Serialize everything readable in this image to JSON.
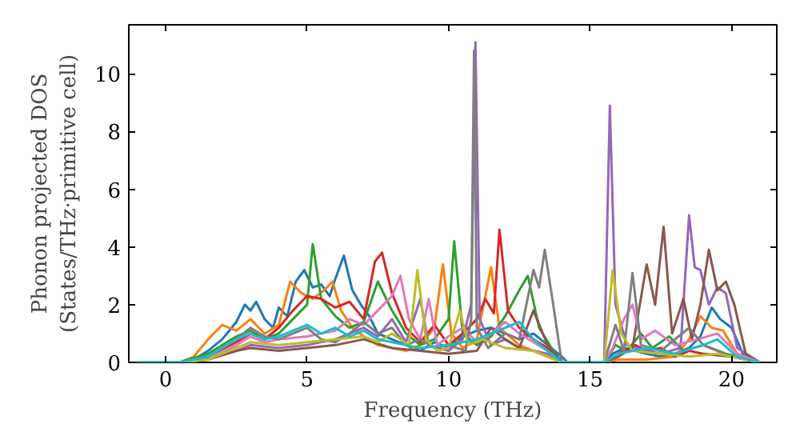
{
  "chart_data": {
    "type": "line",
    "xlabel": "Frequency (THz)",
    "ylabel": "Phonon projected DOS\n(States/THz·primitive cell)",
    "xlim": [
      -1.3,
      21.6
    ],
    "ylim": [
      0,
      11.7
    ],
    "xticks": [
      0,
      5,
      10,
      15,
      20
    ],
    "yticks": [
      0,
      2,
      4,
      6,
      8,
      10
    ],
    "line_style": "solid",
    "series": [
      {
        "color": "#1f77b4",
        "x": [
          -1,
          0.5,
          1,
          1.5,
          2,
          2.5,
          2.8,
          3.0,
          3.2,
          3.5,
          3.8,
          4.0,
          4.3,
          4.6,
          4.9,
          5.2,
          5.5,
          5.8,
          6.0,
          6.3,
          6.6,
          6.9,
          7.2,
          7.5,
          8,
          8.5,
          9,
          9.5,
          10,
          10.5,
          11,
          11.5,
          12,
          12.5,
          13,
          13.5,
          14,
          14.2,
          15.5,
          15.8,
          16.2,
          16.6,
          17,
          17.5,
          18,
          18.5,
          18.9,
          19.3,
          19.6,
          20,
          20.4,
          21
        ],
        "values": [
          0,
          0,
          0.1,
          0.4,
          0.8,
          1.4,
          2.0,
          1.8,
          2.1,
          1.5,
          1.2,
          1.9,
          1.6,
          2.8,
          3.2,
          2.6,
          2.7,
          2.3,
          2.9,
          3.7,
          2.5,
          2.0,
          1.6,
          1.0,
          0.8,
          0.6,
          0.4,
          0.7,
          0.5,
          0.9,
          1.1,
          1.2,
          1.0,
          0.8,
          1.0,
          0.6,
          0.2,
          0,
          0,
          0.3,
          0.5,
          0.4,
          0.3,
          0.2,
          0.3,
          0.5,
          0.9,
          1.9,
          1.5,
          1.2,
          0.3,
          0
        ]
      },
      {
        "color": "#ff7f0e",
        "x": [
          -1,
          0.5,
          1,
          1.5,
          2,
          2.5,
          3,
          3.5,
          4,
          4.4,
          4.8,
          5.2,
          5.6,
          5.9,
          6.2,
          6.6,
          7,
          7.5,
          8,
          8.5,
          9,
          9.5,
          9.8,
          10.1,
          10.5,
          11,
          11.5,
          11.8,
          12.5,
          13,
          13.5,
          14,
          15.5,
          16,
          17,
          18,
          18.5,
          18.9,
          19.3,
          19.7,
          20.2,
          21
        ],
        "values": [
          0,
          0,
          0.2,
          0.8,
          1.3,
          1.1,
          1.5,
          1.0,
          1.3,
          2.8,
          2.4,
          2.2,
          2.5,
          2.8,
          1.8,
          1.2,
          0.9,
          0.6,
          0.5,
          0.4,
          0.6,
          1.2,
          3.4,
          1.0,
          0.5,
          0.8,
          3.3,
          1.2,
          0.6,
          0.4,
          0.2,
          0,
          0,
          0.1,
          0.1,
          0.2,
          0.8,
          1.6,
          1.2,
          1.1,
          0.3,
          0
        ]
      },
      {
        "color": "#2ca02c",
        "x": [
          -1,
          0.5,
          1.5,
          2.5,
          3,
          3.5,
          4,
          4.5,
          5,
          5.2,
          5.5,
          6,
          6.5,
          7,
          7.5,
          8,
          8.5,
          9,
          9.5,
          10,
          10.2,
          10.5,
          11,
          11.5,
          12,
          12.5,
          12.8,
          13.2,
          13.7,
          14,
          15.5,
          15.9,
          16.3,
          16.8,
          17.2,
          17.8,
          18.3,
          19,
          19.8,
          21
        ],
        "values": [
          0,
          0,
          0.3,
          0.9,
          1.1,
          0.8,
          1.0,
          1.5,
          2.0,
          4.1,
          2.2,
          1.6,
          1.2,
          1.4,
          2.8,
          1.8,
          1.0,
          0.6,
          0.8,
          1.5,
          4.2,
          1.0,
          0.6,
          0.9,
          1.6,
          2.5,
          3.0,
          1.2,
          0.4,
          0,
          0,
          0.6,
          0.4,
          1.0,
          0.5,
          0.9,
          0.4,
          0.6,
          0.3,
          0
        ]
      },
      {
        "color": "#d62728",
        "x": [
          -1,
          0.5,
          1.5,
          2.5,
          3,
          3.5,
          4,
          4.5,
          5,
          5.5,
          6,
          6.5,
          7,
          7.4,
          7.65,
          8,
          8.5,
          9,
          9.5,
          10,
          10.5,
          11,
          11.3,
          11.6,
          11.8,
          12.1,
          12.5,
          13,
          13.5,
          14,
          15.5,
          16,
          16.6,
          17,
          17.5,
          18,
          18.5,
          19,
          20,
          21
        ],
        "values": [
          0,
          0,
          0.2,
          0.7,
          1.0,
          0.8,
          1.2,
          1.8,
          2.3,
          2.2,
          1.9,
          2.1,
          1.5,
          3.5,
          3.8,
          2.4,
          1.2,
          0.7,
          1.3,
          0.6,
          1.0,
          1.5,
          2.2,
          1.7,
          4.6,
          1.8,
          1.2,
          0.8,
          0.5,
          0,
          0,
          0.3,
          0.6,
          0.4,
          0.5,
          0.2,
          0.4,
          0.3,
          0.2,
          0
        ]
      },
      {
        "color": "#9467bd",
        "x": [
          -1,
          0.5,
          1.5,
          2.5,
          3,
          4,
          5,
          6,
          7,
          7.5,
          8,
          8.5,
          9,
          9.3,
          10,
          10.5,
          10.8,
          10.95,
          11.1,
          11.5,
          12,
          12.5,
          13,
          13.5,
          14,
          15.5,
          15.7,
          15.9,
          16.3,
          17,
          17.5,
          18.2,
          18.5,
          18.7,
          18.9,
          19.2,
          19.5,
          19.8,
          20.2,
          21
        ],
        "values": [
          0,
          0,
          0.1,
          0.4,
          0.6,
          0.5,
          0.6,
          0.8,
          1.2,
          0.9,
          1.5,
          0.7,
          2.2,
          0.6,
          0.4,
          0.8,
          2.0,
          11.1,
          1.5,
          0.6,
          0.8,
          0.5,
          0.4,
          0.3,
          0,
          0,
          8.9,
          2.0,
          0.6,
          0.4,
          0.3,
          0.5,
          5.1,
          3.3,
          3.2,
          2.0,
          2.6,
          2.4,
          0.5,
          0
        ]
      },
      {
        "color": "#8c564b",
        "x": [
          -1,
          0.5,
          1.5,
          2.5,
          3,
          4,
          5,
          6,
          7,
          8,
          9,
          10,
          11,
          11.5,
          12,
          12.5,
          13,
          13.5,
          14,
          15.5,
          16,
          16.5,
          17,
          17.3,
          17.6,
          17.9,
          18.3,
          18.6,
          18.9,
          19.2,
          19.5,
          19.8,
          20.1,
          20.5,
          21
        ],
        "values": [
          0,
          0,
          0.1,
          0.4,
          0.5,
          0.4,
          0.5,
          0.6,
          0.8,
          0.5,
          0.4,
          0.3,
          0.4,
          1.2,
          0.8,
          0.5,
          1.8,
          0.6,
          0,
          0,
          0.2,
          0.5,
          3.4,
          2.0,
          4.7,
          1.0,
          2.2,
          0.8,
          2.0,
          3.9,
          2.5,
          2.8,
          2.0,
          0.3,
          0
        ]
      },
      {
        "color": "#e377c2",
        "x": [
          -1,
          0.5,
          1.5,
          2.5,
          3,
          3.5,
          4,
          5,
          6,
          6.5,
          7,
          7.5,
          8,
          8.3,
          8.6,
          9,
          9.3,
          9.6,
          10,
          10.5,
          11,
          11.5,
          12,
          12.5,
          13,
          13.5,
          14,
          15.5,
          15.8,
          16.2,
          16.5,
          16.8,
          17.3,
          18,
          18.8,
          19.5,
          20.2,
          21
        ],
        "values": [
          0,
          0,
          0.1,
          0.6,
          0.9,
          0.7,
          0.8,
          0.9,
          1.1,
          1.5,
          1.3,
          1.8,
          2.3,
          3.0,
          1.5,
          0.8,
          2.2,
          0.6,
          0.9,
          1.2,
          0.7,
          1.0,
          1.4,
          1.0,
          0.7,
          0.4,
          0,
          0,
          0.5,
          1.5,
          2.0,
          0.8,
          1.1,
          0.6,
          0.8,
          1.0,
          0.3,
          0
        ]
      },
      {
        "color": "#7f7f7f",
        "x": [
          -1,
          0.5,
          1.5,
          2.5,
          3,
          3.5,
          4,
          4.5,
          5,
          5.5,
          6,
          6.5,
          7,
          7.5,
          8,
          8.5,
          9,
          9.5,
          10,
          10.6,
          10.8,
          10.9,
          11.0,
          11.4,
          12,
          12.5,
          13,
          13.2,
          13.4,
          13.7,
          14,
          15.5,
          15.9,
          16.2,
          16.5,
          16.8,
          17.5,
          18.5,
          19,
          20,
          21
        ],
        "values": [
          0,
          0,
          0.2,
          0.8,
          1.2,
          0.9,
          0.8,
          1.0,
          1.2,
          0.8,
          0.7,
          1.0,
          1.4,
          1.0,
          1.2,
          0.6,
          0.8,
          0.5,
          0.6,
          0.4,
          1.5,
          10.8,
          1.2,
          0.5,
          1.0,
          0.8,
          3.2,
          2.6,
          3.9,
          2.0,
          0,
          0,
          1.3,
          0.4,
          3.1,
          0.6,
          0.4,
          1.2,
          0.6,
          0.2,
          0
        ]
      },
      {
        "color": "#bcbd22",
        "x": [
          -1,
          0.5,
          1.5,
          2.5,
          3,
          4,
          5,
          6,
          7,
          7.5,
          8,
          8.6,
          8.9,
          9.2,
          9.6,
          10,
          10.4,
          10.7,
          11.2,
          12,
          13,
          14,
          15.5,
          15.8,
          16.1,
          16.5,
          17.5,
          18.5,
          19.5,
          21
        ],
        "values": [
          0,
          0,
          0.1,
          0.5,
          0.7,
          0.6,
          0.7,
          0.8,
          0.9,
          0.7,
          1.0,
          0.6,
          3.2,
          0.8,
          0.4,
          0.5,
          1.8,
          0.6,
          0.8,
          0.5,
          0.4,
          0,
          0,
          3.2,
          1.0,
          0.4,
          0.3,
          0.2,
          0.3,
          0
        ]
      },
      {
        "color": "#17becf",
        "x": [
          -1,
          0.5,
          1.5,
          2.5,
          3,
          3.5,
          4,
          4.5,
          5,
          5.5,
          6,
          6.5,
          7,
          7.5,
          8,
          9,
          10,
          11,
          11.5,
          12.5,
          13,
          13.5,
          14,
          15.5,
          16,
          17,
          18,
          19,
          19.5,
          20.2,
          21
        ],
        "values": [
          0,
          0,
          0.2,
          0.8,
          1.0,
          0.8,
          0.9,
          1.1,
          1.3,
          1.0,
          1.2,
          0.9,
          1.1,
          0.8,
          0.7,
          0.5,
          0.6,
          0.8,
          1.0,
          1.4,
          0.8,
          0.4,
          0,
          0,
          0.3,
          0.5,
          0.3,
          0.6,
          0.8,
          0.2,
          0
        ]
      }
    ]
  }
}
